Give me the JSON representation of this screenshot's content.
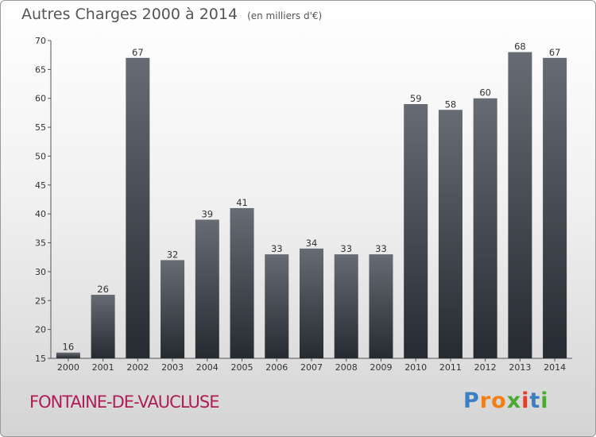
{
  "header": {
    "title": "Autres Charges 2000 à 2014",
    "unit": "(en milliers d'€)"
  },
  "footer": {
    "commune": "FONTAINE-DE-VAUCLUSE",
    "logo": [
      "P",
      "r",
      "o",
      "x",
      "i",
      "t",
      "i"
    ]
  },
  "colors": {
    "bar_top": "#676c74",
    "bar_bottom": "#262a31",
    "commune": "#b01d55",
    "logo": [
      "#3a7fc3",
      "#f07f17",
      "#f07f17",
      "#4aa933",
      "#e23e2a",
      "#3a7fc3",
      "#4aa933"
    ]
  },
  "chart_data": {
    "type": "bar",
    "categories": [
      "2000",
      "2001",
      "2002",
      "2003",
      "2004",
      "2005",
      "2006",
      "2007",
      "2008",
      "2009",
      "2010",
      "2011",
      "2012",
      "2013",
      "2014"
    ],
    "values": [
      16,
      26,
      67,
      32,
      39,
      41,
      33,
      34,
      33,
      33,
      59,
      58,
      60,
      68,
      67
    ],
    "title": "Autres Charges 2000 à 2014",
    "subtitle": "(en milliers d'€)",
    "ylim": [
      15,
      70
    ],
    "yticks": [
      15,
      20,
      25,
      30,
      35,
      40,
      45,
      50,
      55,
      60,
      65,
      70
    ],
    "grid": false,
    "data_labels": true
  }
}
